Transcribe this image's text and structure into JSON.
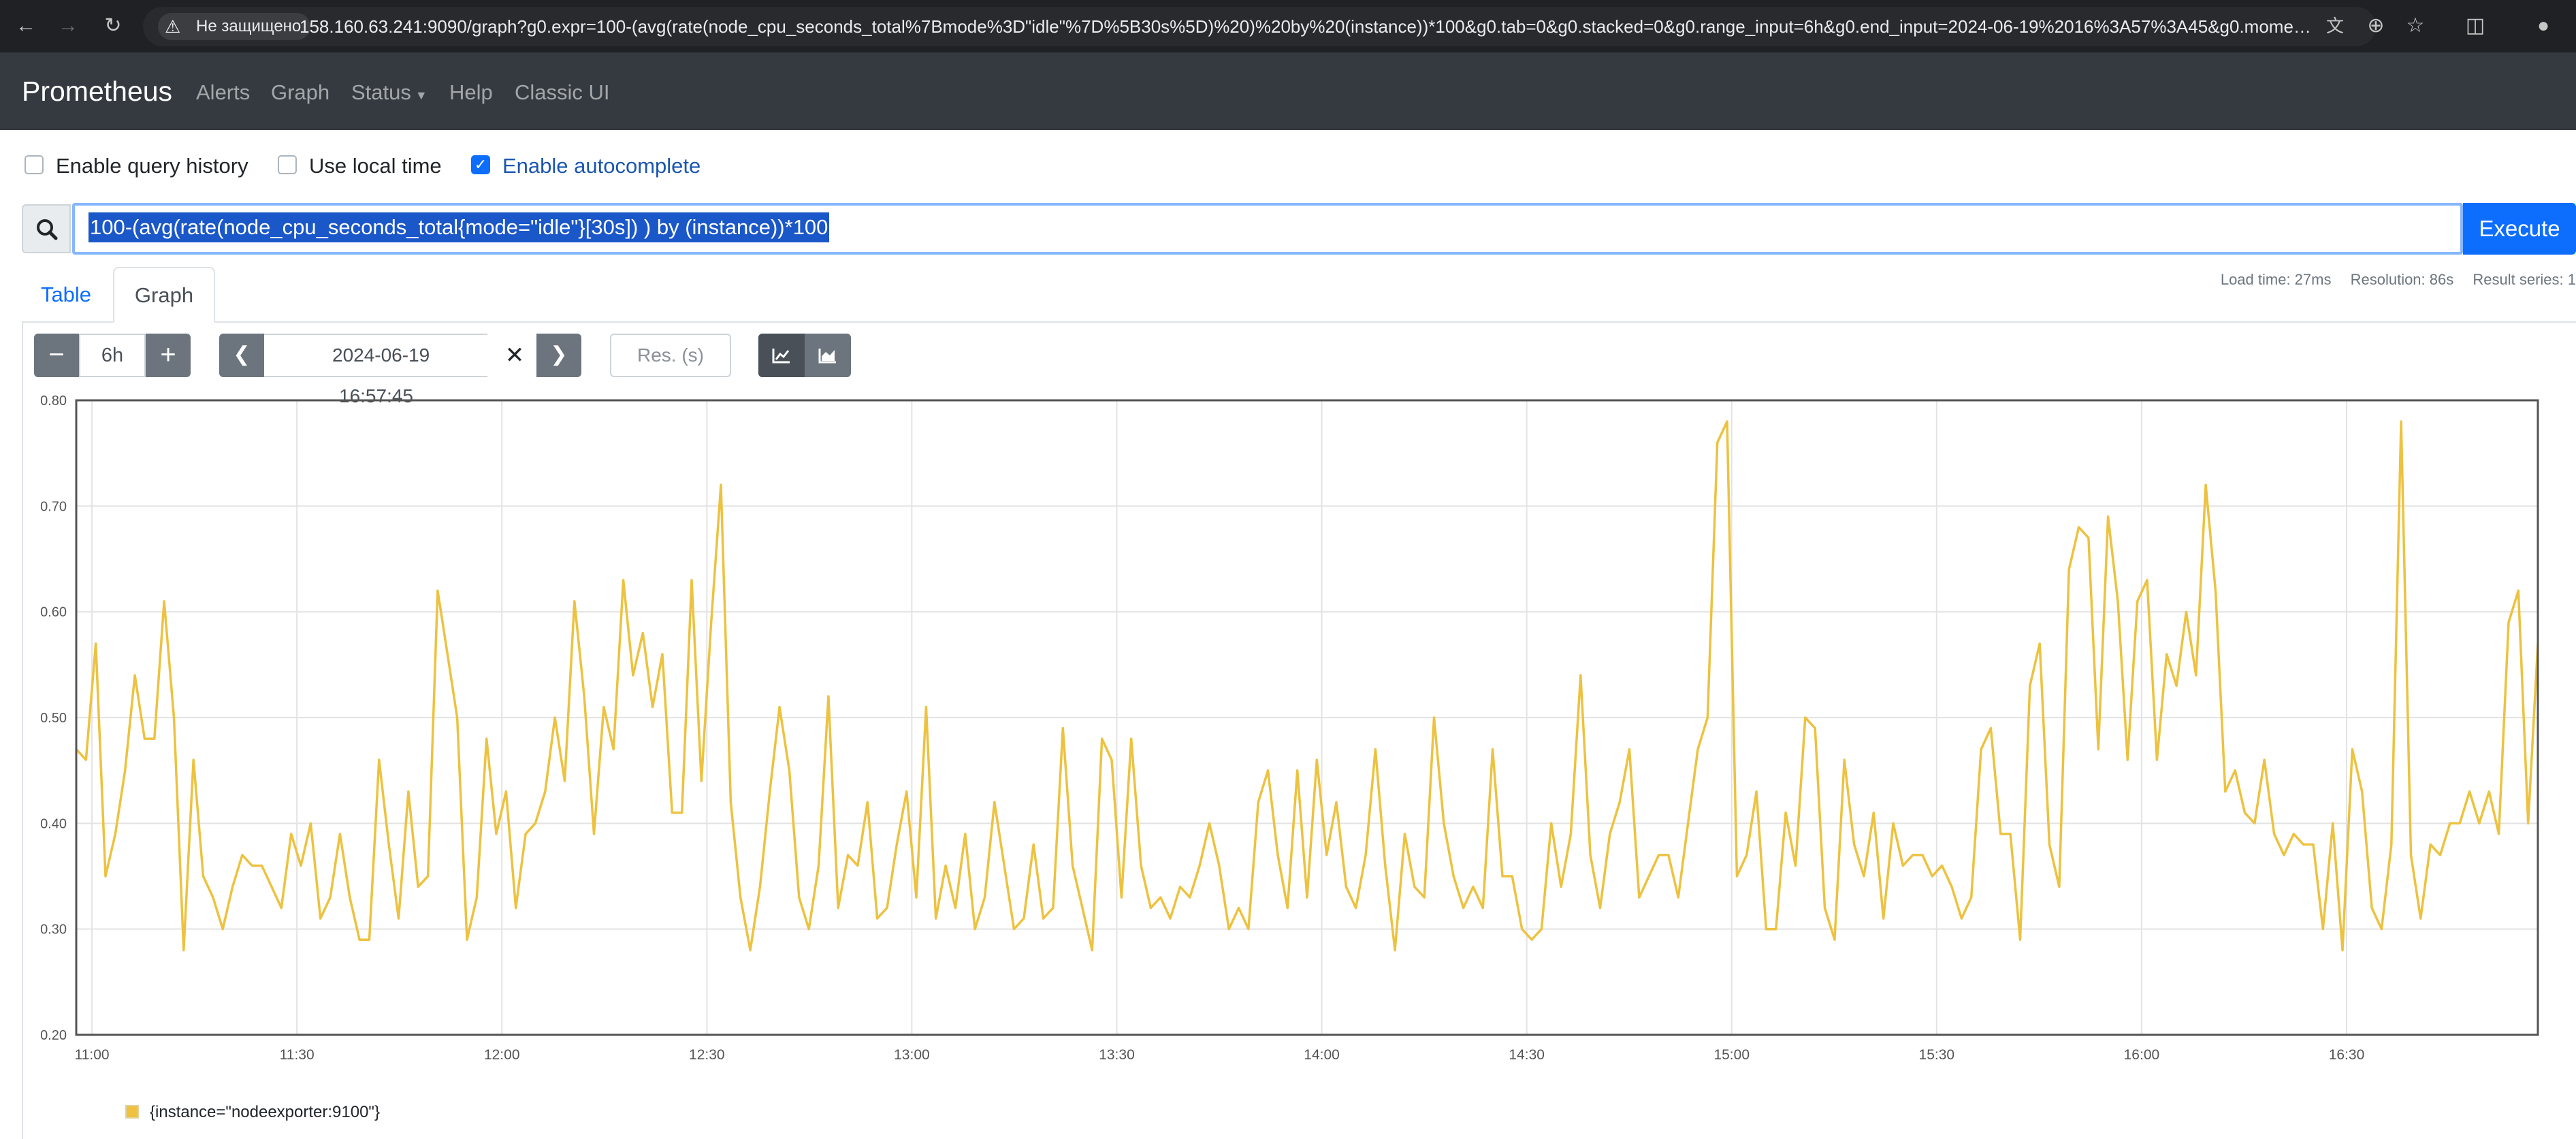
{
  "browser": {
    "security_label": "Не защищено",
    "url": "158.160.63.241:9090/graph?g0.expr=100-(avg(rate(node_cpu_seconds_total%7Bmode%3D\"idle\"%7D%5B30s%5D)%20)%20by%20(instance))*100&g0.tab=0&g0.stacked=0&g0.range_input=6h&g0.end_input=2024-06-19%2016%3A57%3A45&g0.moment_input=202..."
  },
  "navbar": {
    "brand": "Prometheus",
    "links": [
      "Alerts",
      "Graph",
      "Status",
      "Help",
      "Classic UI"
    ]
  },
  "options": {
    "query_history": "Enable query history",
    "local_time": "Use local time",
    "autocomplete": "Enable autocomplete"
  },
  "query": {
    "expression": "100-(avg(rate(node_cpu_seconds_total{mode=\"idle\"}[30s]) ) by (instance))*100",
    "execute_label": "Execute"
  },
  "stats": {
    "load_time": "Load time: 27ms",
    "resolution": "Resolution: 86s",
    "result_series": "Result series: 1"
  },
  "tabs": [
    "Table",
    "Graph"
  ],
  "controls": {
    "range": "6h",
    "end_time": "2024-06-19 16:57:45",
    "res_placeholder": "Res. (s)"
  },
  "colors": {
    "series": "#edc240",
    "accent": "#0d6efd",
    "navbar": "#343a40"
  },
  "chart_data": {
    "type": "line",
    "x_ticks": [
      "11:00",
      "11:30",
      "12:00",
      "12:30",
      "13:00",
      "13:30",
      "14:00",
      "14:30",
      "15:00",
      "15:30",
      "16:00",
      "16:30"
    ],
    "y_ticks": [
      "0.20",
      "0.30",
      "0.40",
      "0.50",
      "0.60",
      "0.70",
      "0.80"
    ],
    "ylim": [
      0.2,
      0.8
    ],
    "xlim_minutes_from_11_00": [
      -2.3,
      358
    ],
    "grid": true,
    "legend_position": "bottom-left",
    "series": [
      {
        "name": "{instance=\"nodeexporter:9100\"}",
        "color": "#edc240",
        "interval_minutes": 1.44,
        "values": [
          0.47,
          0.46,
          0.57,
          0.35,
          0.39,
          0.45,
          0.54,
          0.48,
          0.48,
          0.61,
          0.5,
          0.28,
          0.46,
          0.35,
          0.33,
          0.3,
          0.34,
          0.37,
          0.36,
          0.36,
          0.34,
          0.32,
          0.39,
          0.36,
          0.4,
          0.31,
          0.33,
          0.39,
          0.33,
          0.29,
          0.29,
          0.46,
          0.38,
          0.31,
          0.43,
          0.34,
          0.35,
          0.62,
          0.56,
          0.5,
          0.29,
          0.33,
          0.48,
          0.39,
          0.43,
          0.32,
          0.39,
          0.4,
          0.43,
          0.5,
          0.44,
          0.61,
          0.52,
          0.39,
          0.51,
          0.47,
          0.63,
          0.54,
          0.58,
          0.51,
          0.56,
          0.41,
          0.41,
          0.63,
          0.44,
          0.59,
          0.72,
          0.42,
          0.33,
          0.28,
          0.34,
          0.43,
          0.51,
          0.45,
          0.33,
          0.3,
          0.36,
          0.52,
          0.32,
          0.37,
          0.36,
          0.42,
          0.31,
          0.32,
          0.38,
          0.43,
          0.33,
          0.51,
          0.31,
          0.36,
          0.32,
          0.39,
          0.3,
          0.33,
          0.42,
          0.36,
          0.3,
          0.31,
          0.38,
          0.31,
          0.32,
          0.49,
          0.36,
          0.32,
          0.28,
          0.48,
          0.46,
          0.33,
          0.48,
          0.36,
          0.32,
          0.33,
          0.31,
          0.34,
          0.33,
          0.36,
          0.4,
          0.36,
          0.3,
          0.32,
          0.3,
          0.42,
          0.45,
          0.37,
          0.32,
          0.45,
          0.33,
          0.46,
          0.37,
          0.42,
          0.34,
          0.32,
          0.37,
          0.47,
          0.36,
          0.28,
          0.39,
          0.34,
          0.33,
          0.5,
          0.4,
          0.35,
          0.32,
          0.34,
          0.32,
          0.47,
          0.35,
          0.35,
          0.3,
          0.29,
          0.3,
          0.4,
          0.34,
          0.39,
          0.54,
          0.37,
          0.32,
          0.39,
          0.42,
          0.47,
          0.33,
          0.35,
          0.37,
          0.37,
          0.33,
          0.4,
          0.47,
          0.5,
          0.76,
          0.78,
          0.35,
          0.37,
          0.43,
          0.3,
          0.3,
          0.41,
          0.36,
          0.5,
          0.49,
          0.32,
          0.29,
          0.46,
          0.38,
          0.35,
          0.41,
          0.31,
          0.4,
          0.36,
          0.37,
          0.37,
          0.35,
          0.36,
          0.34,
          0.31,
          0.33,
          0.47,
          0.49,
          0.39,
          0.39,
          0.29,
          0.53,
          0.57,
          0.38,
          0.34,
          0.64,
          0.68,
          0.67,
          0.47,
          0.69,
          0.61,
          0.46,
          0.61,
          0.63,
          0.46,
          0.56,
          0.53,
          0.6,
          0.54,
          0.72,
          0.62,
          0.43,
          0.45,
          0.41,
          0.4,
          0.46,
          0.39,
          0.37,
          0.39,
          0.38,
          0.38,
          0.3,
          0.4,
          0.28,
          0.47,
          0.43,
          0.32,
          0.3,
          0.38,
          0.78,
          0.37,
          0.31,
          0.38,
          0.37,
          0.4,
          0.4,
          0.43,
          0.4,
          0.43,
          0.39,
          0.59,
          0.62,
          0.4,
          0.57
        ]
      }
    ]
  }
}
